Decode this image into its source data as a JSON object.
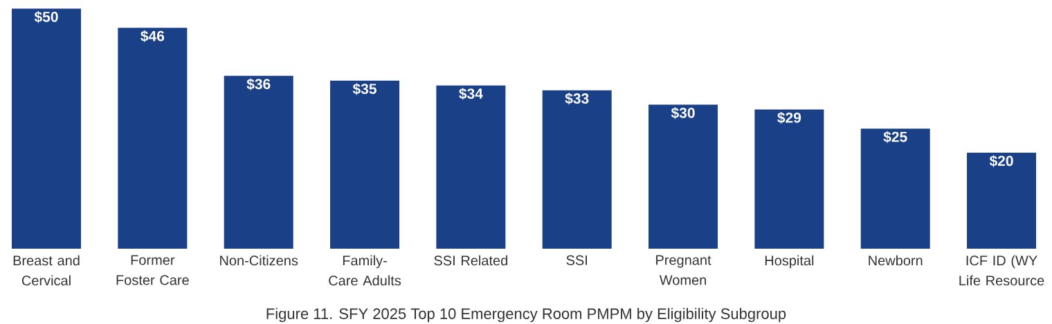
{
  "chart_data": {
    "type": "bar",
    "title": "Figure 11. SFY 2025 Top 10 Emergency Room PMPM by Eligibility Subgroup",
    "categories": [
      "Breast and Cervical",
      "Former Foster Care",
      "Non-Citizens",
      "Family-Care Adults",
      "SSI Related",
      "SSI",
      "Pregnant Women",
      "Hospital",
      "Newborn",
      "ICF ID (WY Life Resource"
    ],
    "values": [
      50,
      46,
      36,
      35,
      34,
      33,
      30,
      29,
      25,
      20
    ],
    "value_labels": [
      "$50",
      "$46",
      "$36",
      "$35",
      "$34",
      "$33",
      "$30",
      "$29",
      "$25",
      "$20"
    ],
    "color": "#1a4087"
  }
}
